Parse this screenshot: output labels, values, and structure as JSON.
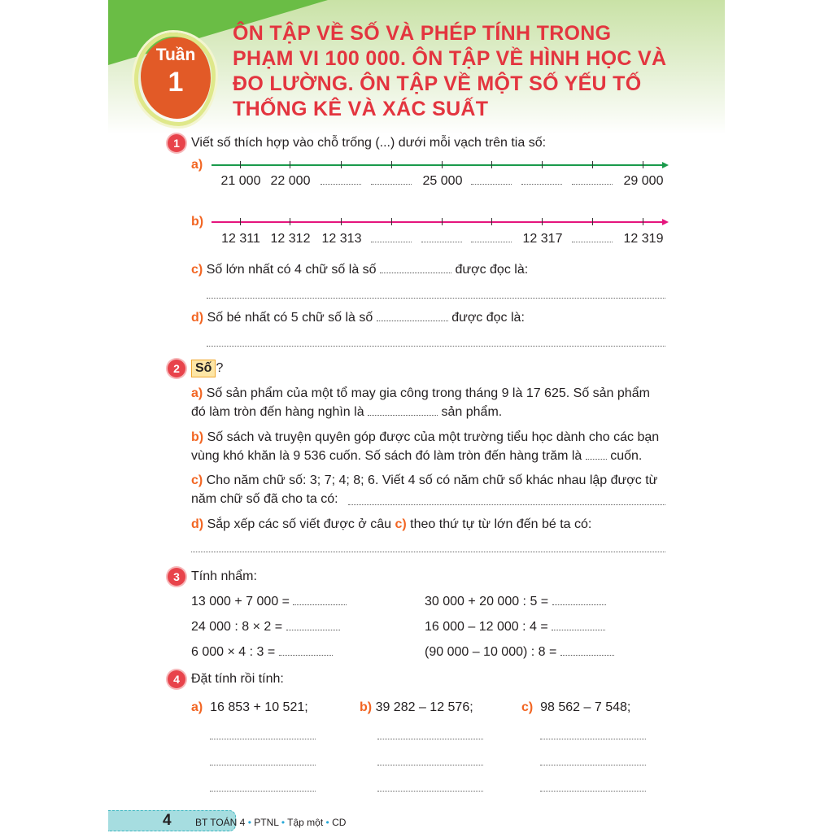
{
  "header": {
    "week_label": "Tuần",
    "week_number": "1",
    "title_lines": [
      "ÔN TẬP VỀ SỐ VÀ PHÉP TÍNH TRONG",
      "PHẠM VI 100 000. ÔN TẬP VỀ HÌNH HỌC VÀ",
      "ĐO LƯỜNG. ÔN TẬP VỀ MỘT SỐ YẾU TỐ",
      "THỐNG KÊ VÀ XÁC SUẤT"
    ]
  },
  "q1": {
    "num": "1",
    "text": "Viết số thích hợp vào chỗ trống (...) dưới mỗi vạch trên tia số:",
    "a": {
      "label": "a)",
      "color": "#1a9a4b",
      "ticks": [
        "21 000",
        "22 000",
        "",
        "",
        "25 000",
        "",
        "",
        "",
        "29 000"
      ]
    },
    "b": {
      "label": "b)",
      "color": "#e5157d",
      "ticks": [
        "12 311",
        "12 312",
        "12 313",
        "",
        "",
        "",
        "12 317",
        "",
        "12 319"
      ]
    },
    "c": {
      "label": "c)",
      "text1": "Số lớn nhất có 4 chữ số là số",
      "text2": "được đọc là:"
    },
    "d": {
      "label": "d)",
      "text1": "Số bé nhất có 5 chữ số là số",
      "text2": "được đọc là:"
    }
  },
  "q2": {
    "num": "2",
    "box": "Số",
    "q": "?",
    "a": {
      "label": "a)",
      "line1": "Số sản phẩm của một tổ may gia công trong tháng 9 là 17 625. Số sản phẩm",
      "line2": "đó làm tròn đến hàng nghìn là",
      "line2b": "sản phẩm."
    },
    "b": {
      "label": "b)",
      "line1": "Số sách và truyện quyên góp được của một trường tiểu học dành cho các bạn",
      "line2": "vùng khó khăn là 9 536 cuốn. Số sách đó làm tròn đến hàng trăm là",
      "line2b": "cuốn."
    },
    "c": {
      "label": "c)",
      "line1": "Cho năm chữ số: 3; 7; 4; 8; 6. Viết 4 số có năm chữ số khác nhau lập được từ",
      "line2": "năm chữ số đã cho ta có:"
    },
    "d": {
      "label": "d)",
      "line1a": "Sắp xếp các số viết được ở câu",
      "ref": "c)",
      "line1b": "theo thứ tự từ lớn đến bé ta có:"
    }
  },
  "q3": {
    "num": "3",
    "title": "Tính nhẩm:",
    "left": [
      "13 000 + 7 000 =",
      "24 000 : 8 × 2 =",
      "6 000 × 4 : 3 ="
    ],
    "right": [
      "30 000 + 20 000 : 5 =",
      "16 000 – 12 000 : 4 =",
      "(90 000 – 10 000) : 8 ="
    ]
  },
  "q4": {
    "num": "4",
    "title": "Đặt tính rồi tính:",
    "items": [
      {
        "label": "a)",
        "expr": "16 853 + 10 521;"
      },
      {
        "label": "b)",
        "expr": "39 282 – 12 576;"
      },
      {
        "label": "c)",
        "expr": "98 562 – 7 548;"
      }
    ]
  },
  "footer": {
    "page": "4",
    "book": "BT TOÁN 4",
    "sep": "•",
    "edition": "PTNL",
    "volume": "Tập một",
    "series": "CD"
  }
}
